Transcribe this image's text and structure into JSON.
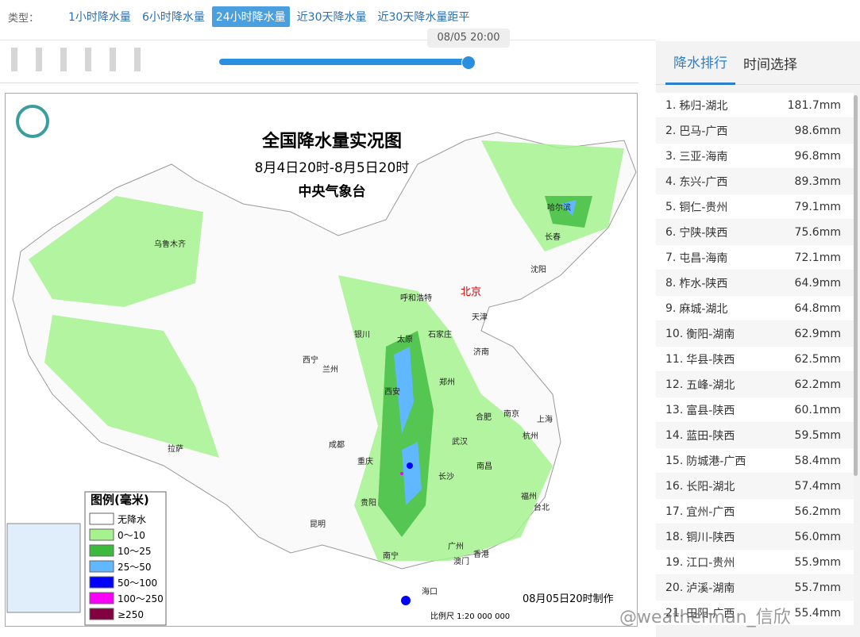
{
  "filter": {
    "label": "类型：",
    "tabs": [
      "1小时降水量",
      "6小时降水量",
      "24小时降水量",
      "近30天降水量",
      "近30天降水量距平"
    ],
    "active": 2
  },
  "timeline": {
    "time": "08/05 20:00"
  },
  "map": {
    "title": "全国降水量实况图",
    "subtitle": "8月4日20时-8月5日20时",
    "source": "中央气象台",
    "legend": {
      "title": "图例(毫米)",
      "items": [
        {
          "label": "无降水",
          "color": "#ffffff"
        },
        {
          "label": "0～10",
          "color": "#a6f28f"
        },
        {
          "label": "10～25",
          "color": "#3dba3d"
        },
        {
          "label": "25～50",
          "color": "#61b8ff"
        },
        {
          "label": "50～100",
          "color": "#0000ff"
        },
        {
          "label": "100～250",
          "color": "#fa00fa"
        },
        {
          "label": "≥250",
          "color": "#800040"
        }
      ]
    },
    "cities": [
      "乌鲁木齐",
      "哈尔滨",
      "长春",
      "沈阳",
      "呼和浩特",
      "北京",
      "天津",
      "银川",
      "太原",
      "石家庄",
      "济南",
      "西宁",
      "兰州",
      "郑州",
      "西安",
      "合肥",
      "南京",
      "上海",
      "成都",
      "重庆",
      "武汉",
      "杭州",
      "拉萨",
      "长沙",
      "南昌",
      "贵阳",
      "福州",
      "台北",
      "昆明",
      "南宁",
      "广州",
      "澳门",
      "香港",
      "海口"
    ],
    "made": "08月05日20时制作",
    "scale": "比例尺 1:20 000 000"
  },
  "ranking": {
    "tabs": [
      "降水排行",
      "时间选择"
    ],
    "rows": [
      [
        "1.",
        "秭归-湖北",
        "181.7mm"
      ],
      [
        "2.",
        "巴马-广西",
        "98.6mm"
      ],
      [
        "3.",
        "三亚-海南",
        "96.8mm"
      ],
      [
        "4.",
        "东兴-广西",
        "89.3mm"
      ],
      [
        "5.",
        "铜仁-贵州",
        "79.1mm"
      ],
      [
        "6.",
        "宁陕-陕西",
        "75.6mm"
      ],
      [
        "7.",
        "屯昌-海南",
        "72.1mm"
      ],
      [
        "8.",
        "柞水-陕西",
        "64.9mm"
      ],
      [
        "9.",
        "麻城-湖北",
        "64.8mm"
      ],
      [
        "10.",
        "衡阳-湖南",
        "62.9mm"
      ],
      [
        "11.",
        "华县-陕西",
        "62.5mm"
      ],
      [
        "12.",
        "五峰-湖北",
        "62.2mm"
      ],
      [
        "13.",
        "富县-陕西",
        "60.1mm"
      ],
      [
        "14.",
        "蓝田-陕西",
        "59.5mm"
      ],
      [
        "15.",
        "防城港-广西",
        "58.4mm"
      ],
      [
        "16.",
        "长阳-湖北",
        "57.4mm"
      ],
      [
        "17.",
        "宜州-广西",
        "56.2mm"
      ],
      [
        "18.",
        "铜川-陕西",
        "56.0mm"
      ],
      [
        "19.",
        "江口-贵州",
        "55.9mm"
      ],
      [
        "20.",
        "泸溪-湖南",
        "55.7mm"
      ],
      [
        "21.",
        "田阳-广西",
        "55.4mm"
      ]
    ]
  },
  "watermark": "@weatherman_信欣"
}
